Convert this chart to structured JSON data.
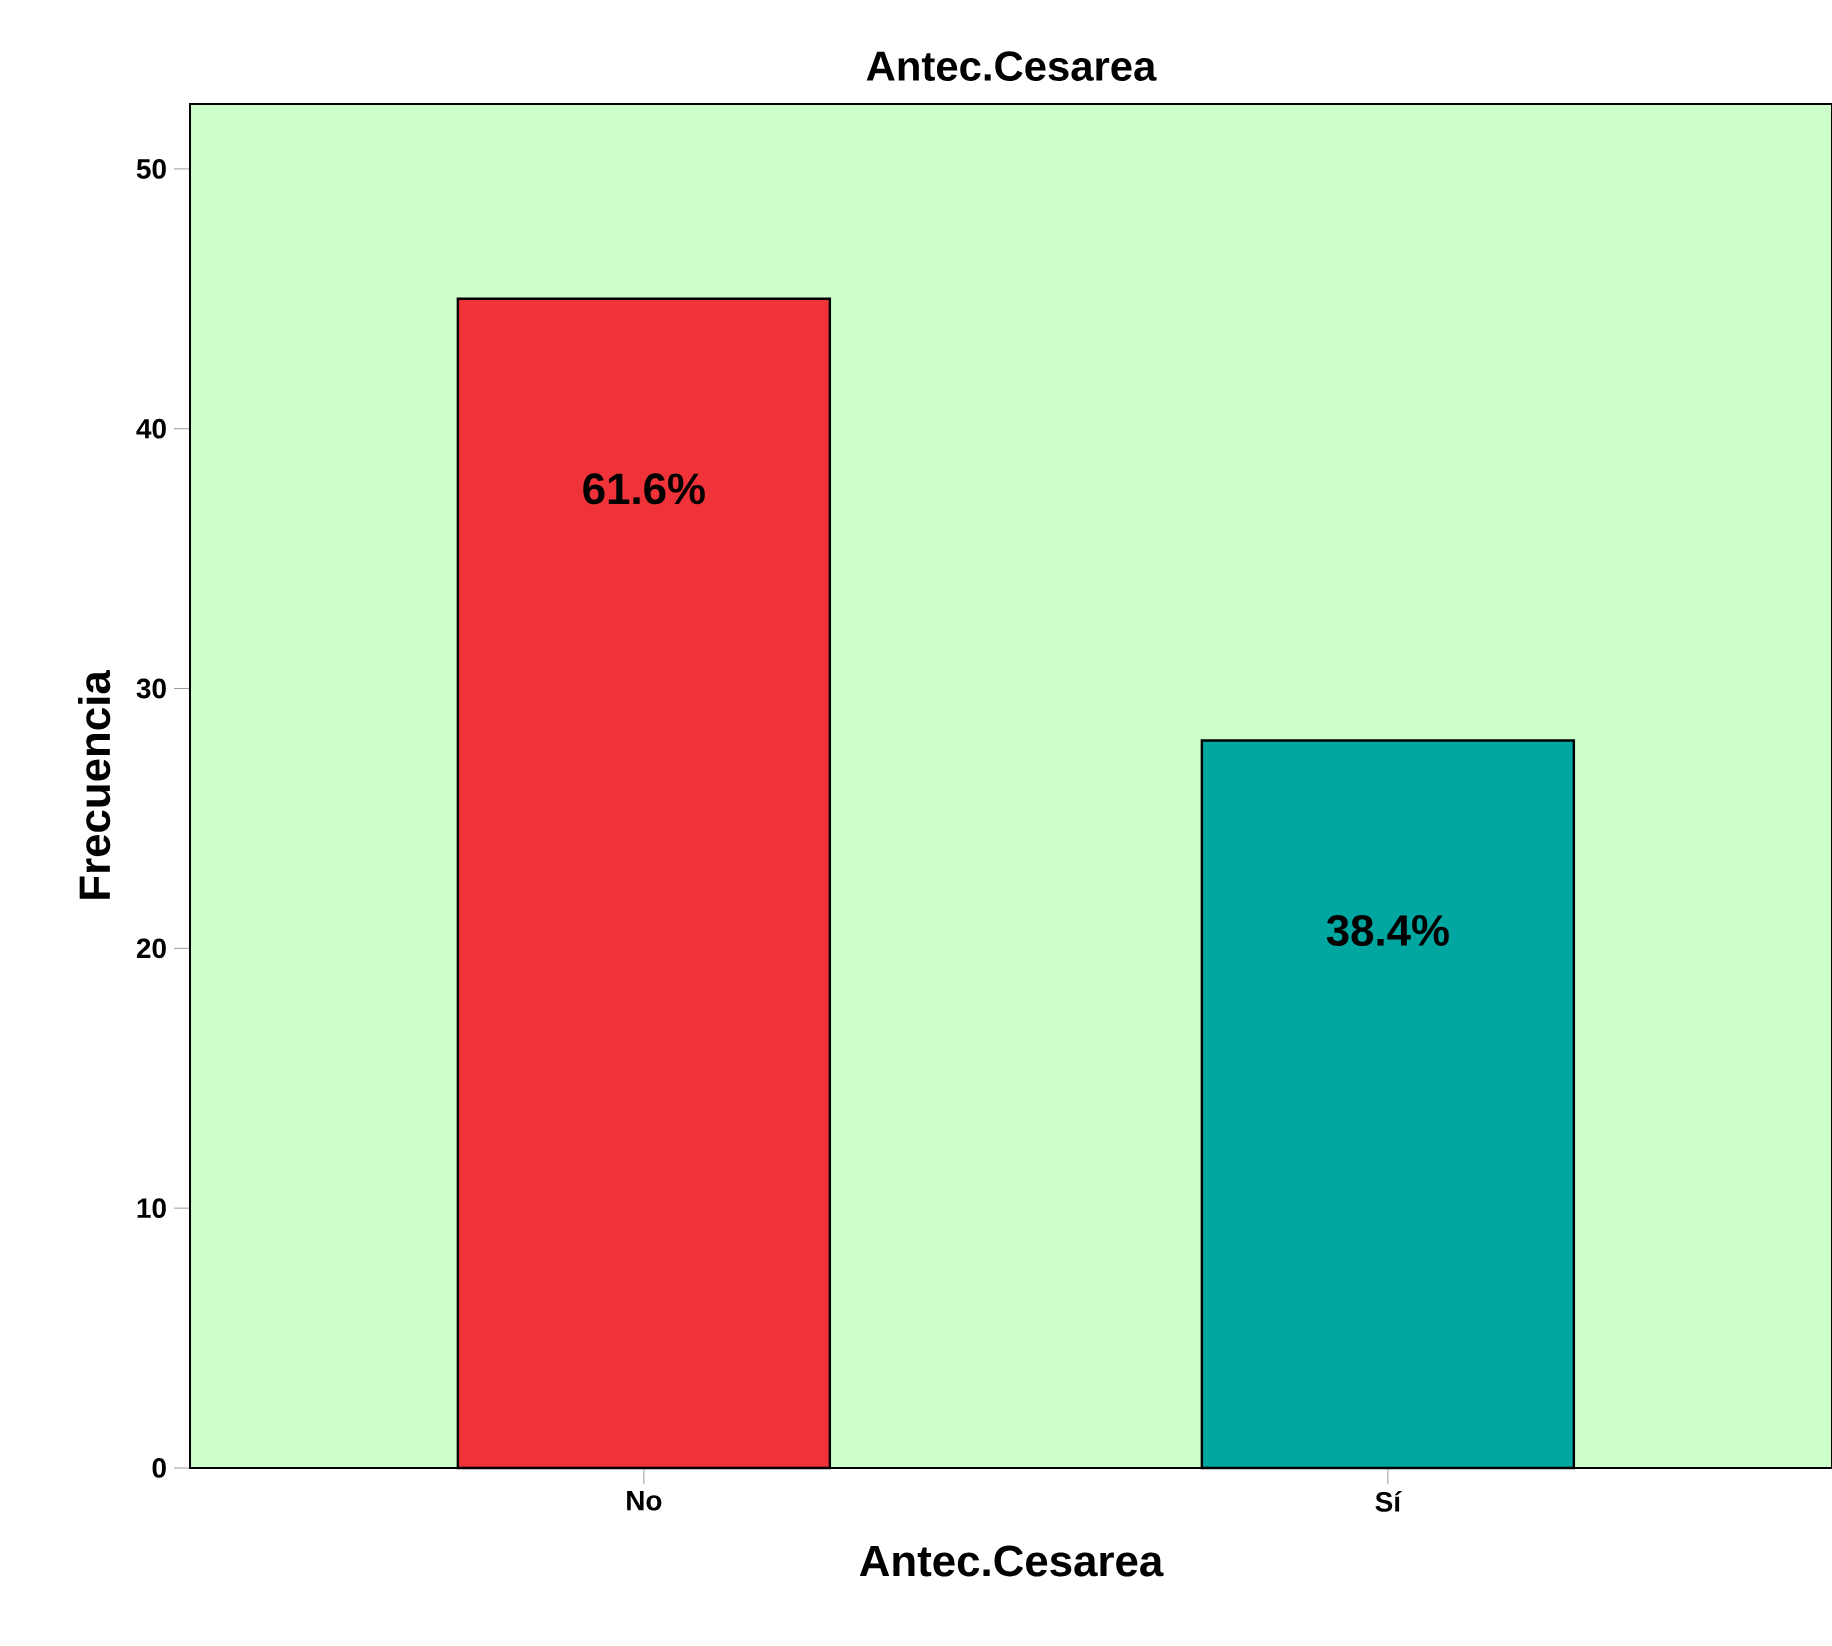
{
  "chart_data": {
    "type": "bar",
    "title": "Antec.Cesarea",
    "xlabel": "Antec.Cesarea",
    "ylabel": "Frecuencia",
    "categories": [
      "No",
      "Sí"
    ],
    "values": [
      45,
      28
    ],
    "colors": [
      "#ef3338",
      "#00a6a0"
    ],
    "annotations": [
      "61.6%",
      "38.4%"
    ],
    "ylim": [
      0,
      52.5
    ],
    "yticks": [
      0,
      10,
      20,
      30,
      40,
      50
    ],
    "grid": false
  }
}
